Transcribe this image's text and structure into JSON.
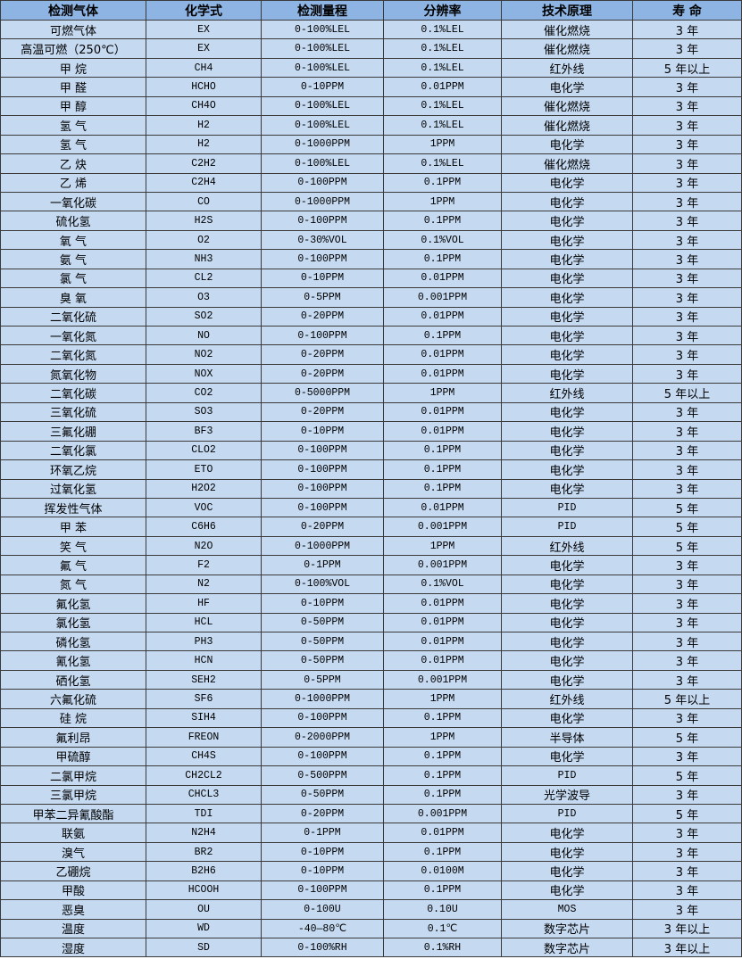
{
  "table": {
    "headers": [
      "检测气体",
      "化学式",
      "检测量程",
      "分辨率",
      "技术原理",
      "寿 命"
    ],
    "rows": [
      [
        "可燃气体",
        "EX",
        "0-100%LEL",
        "0.1%LEL",
        "催化燃烧",
        "3 年"
      ],
      [
        "高温可燃（250℃）",
        "EX",
        "0-100%LEL",
        "0.1%LEL",
        "催化燃烧",
        "3 年"
      ],
      [
        "甲 烷",
        "CH4",
        "0-100%LEL",
        "0.1%LEL",
        "红外线",
        "5 年以上"
      ],
      [
        "甲 醛",
        "HCHO",
        "0-10PPM",
        "0.01PPM",
        "电化学",
        "3 年"
      ],
      [
        "甲 醇",
        "CH4O",
        "0-100%LEL",
        "0.1%LEL",
        "催化燃烧",
        "3 年"
      ],
      [
        "氢 气",
        "H2",
        "0-100%LEL",
        "0.1%LEL",
        "催化燃烧",
        "3 年"
      ],
      [
        "氢 气",
        "H2",
        "0-1000PPM",
        "1PPM",
        "电化学",
        "3 年"
      ],
      [
        "乙 炔",
        "C2H2",
        "0-100%LEL",
        "0.1%LEL",
        "催化燃烧",
        "3 年"
      ],
      [
        "乙 烯",
        "C2H4",
        "0-100PPM",
        "0.1PPM",
        "电化学",
        "3 年"
      ],
      [
        "一氧化碳",
        "CO",
        "0-1000PPM",
        "1PPM",
        "电化学",
        "3 年"
      ],
      [
        "硫化氢",
        "H2S",
        "0-100PPM",
        "0.1PPM",
        "电化学",
        "3 年"
      ],
      [
        "氧 气",
        "O2",
        "0-30%VOL",
        "0.1%VOL",
        "电化学",
        "3 年"
      ],
      [
        "氨 气",
        "NH3",
        "0-100PPM",
        "0.1PPM",
        "电化学",
        "3 年"
      ],
      [
        "氯 气",
        "CL2",
        "0-10PPM",
        "0.01PPM",
        "电化学",
        "3 年"
      ],
      [
        "臭 氧",
        "O3",
        "0-5PPM",
        "0.001PPM",
        "电化学",
        "3 年"
      ],
      [
        "二氧化硫",
        "SO2",
        "0-20PPM",
        "0.01PPM",
        "电化学",
        "3 年"
      ],
      [
        "一氧化氮",
        "NO",
        "0-100PPM",
        "0.1PPM",
        "电化学",
        "3 年"
      ],
      [
        "二氧化氮",
        "NO2",
        "0-20PPM",
        "0.01PPM",
        "电化学",
        "3 年"
      ],
      [
        "氮氧化物",
        "NOX",
        "0-20PPM",
        "0.01PPM",
        "电化学",
        "3 年"
      ],
      [
        "二氧化碳",
        "CO2",
        "0-5000PPM",
        "1PPM",
        "红外线",
        "5 年以上"
      ],
      [
        "三氧化硫",
        "SO3",
        "0-20PPM",
        "0.01PPM",
        "电化学",
        "3 年"
      ],
      [
        "三氟化硼",
        "BF3",
        "0-10PPM",
        "0.01PPM",
        "电化学",
        "3 年"
      ],
      [
        "二氧化氯",
        "CLO2",
        "0-100PPM",
        "0.1PPM",
        "电化学",
        "3 年"
      ],
      [
        "环氧乙烷",
        "ETO",
        "0-100PPM",
        "0.1PPM",
        "电化学",
        "3 年"
      ],
      [
        "过氧化氢",
        "H2O2",
        "0-100PPM",
        "0.1PPM",
        "电化学",
        "3 年"
      ],
      [
        "挥发性气体",
        "VOC",
        "0-100PPM",
        "0.01PPM",
        "PID",
        "5 年"
      ],
      [
        "甲 苯",
        "C6H6",
        "0-20PPM",
        "0.001PPM",
        "PID",
        "5 年"
      ],
      [
        "笑 气",
        "N2O",
        "0-1000PPM",
        "1PPM",
        "红外线",
        "5 年"
      ],
      [
        "氟 气",
        "F2",
        "0-1PPM",
        "0.001PPM",
        "电化学",
        "3 年"
      ],
      [
        "氮 气",
        "N2",
        "0-100%VOL",
        "0.1%VOL",
        "电化学",
        "3 年"
      ],
      [
        "氟化氢",
        "HF",
        "0-10PPM",
        "0.01PPM",
        "电化学",
        "3 年"
      ],
      [
        "氯化氢",
        "HCL",
        "0-50PPM",
        "0.01PPM",
        "电化学",
        "3 年"
      ],
      [
        "磷化氢",
        "PH3",
        "0-50PPM",
        "0.01PPM",
        "电化学",
        "3 年"
      ],
      [
        "氰化氢",
        "HCN",
        "0-50PPM",
        "0.01PPM",
        "电化学",
        "3 年"
      ],
      [
        "硒化氢",
        "SEH2",
        "0-5PPM",
        "0.001PPM",
        "电化学",
        "3 年"
      ],
      [
        "六氟化硫",
        "SF6",
        "0-1000PPM",
        "1PPM",
        "红外线",
        "5 年以上"
      ],
      [
        "硅 烷",
        "SIH4",
        "0-100PPM",
        "0.1PPM",
        "电化学",
        "3 年"
      ],
      [
        "氟利昂",
        "FREON",
        "0-2000PPM",
        "1PPM",
        "半导体",
        "5 年"
      ],
      [
        "甲硫醇",
        "CH4S",
        "0-100PPM",
        "0.1PPM",
        "电化学",
        "3 年"
      ],
      [
        "二氯甲烷",
        "CH2CL2",
        "0-500PPM",
        "0.1PPM",
        "PID",
        "5 年"
      ],
      [
        "三氯甲烷",
        "CHCL3",
        "0-50PPM",
        "0.1PPM",
        "光学波导",
        "3 年"
      ],
      [
        "甲苯二异氰酸酯",
        "TDI",
        "0-20PPM",
        "0.001PPM",
        "PID",
        "5 年"
      ],
      [
        "联氨",
        "N2H4",
        "0-1PPM",
        "0.01PPM",
        "电化学",
        "3 年"
      ],
      [
        "溴气",
        "BR2",
        "0-10PPM",
        "0.1PPM",
        "电化学",
        "3 年"
      ],
      [
        "乙硼烷",
        "B2H6",
        "0-10PPM",
        "0.0100M",
        "电化学",
        "3 年"
      ],
      [
        "甲酸",
        "HCOOH",
        "0-100PPM",
        "0.1PPM",
        "电化学",
        "3 年"
      ],
      [
        "恶臭",
        "OU",
        "0-100U",
        "0.10U",
        "MOS",
        "3 年"
      ],
      [
        "温度",
        "WD",
        "-40—80℃",
        "0.1℃",
        "数字芯片",
        "3 年以上"
      ],
      [
        "湿度",
        "SD",
        "0-100%RH",
        "0.1%RH",
        "数字芯片",
        "3 年以上"
      ]
    ]
  },
  "colors": {
    "header_bg": "#8db4e2",
    "cell_bg": "#c5d9f1",
    "border": "#3a3a3a"
  }
}
